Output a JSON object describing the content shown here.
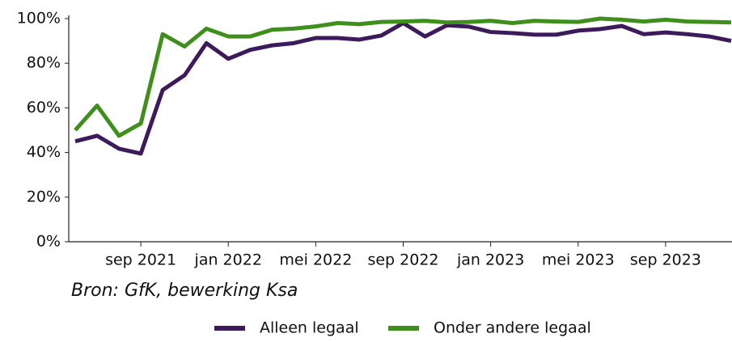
{
  "chart_data": {
    "type": "line",
    "categories": [
      null,
      null,
      null,
      "sep 2021",
      null,
      null,
      null,
      "jan 2022",
      null,
      null,
      null,
      "mei 2022",
      null,
      null,
      null,
      "sep 2022",
      null,
      null,
      null,
      "jan 2023",
      null,
      null,
      null,
      "mei 2023",
      null,
      null,
      null,
      "sep 2023",
      null,
      null,
      null
    ],
    "series": [
      {
        "name": "Alleen legaal",
        "color": "#3d1a5b",
        "values": [
          45,
          47.5,
          41.7,
          39.5,
          68,
          74.6,
          89,
          82,
          86,
          88,
          89,
          91.3,
          91.3,
          90.6,
          92.4,
          98,
          92,
          97,
          96.4,
          94,
          93.5,
          92.8,
          92.8,
          94.6,
          95.3,
          96.7,
          93,
          93.8,
          93,
          92,
          90
        ]
      },
      {
        "name": "Onder andere legaal",
        "color": "#3f8f1d",
        "values": [
          50,
          61,
          47.5,
          53,
          93,
          87.5,
          95.5,
          92,
          92,
          95,
          95.5,
          96.5,
          98,
          97.5,
          98.5,
          98.7,
          99,
          98.3,
          98.5,
          99,
          98,
          99,
          98.7,
          98.5,
          100,
          99.5,
          98.7,
          99.5,
          98.7,
          98.5,
          98.3
        ]
      }
    ],
    "ylim": [
      0,
      100
    ],
    "yticks": [
      {
        "value": 0,
        "label": "0%"
      },
      {
        "value": 20,
        "label": "20%"
      },
      {
        "value": 40,
        "label": "40%"
      },
      {
        "value": 60,
        "label": "60%"
      },
      {
        "value": 80,
        "label": "80%"
      },
      {
        "value": 100,
        "label": "100%"
      }
    ],
    "source": "Bron: GfK, bewerking Ksa",
    "legend": "bottom"
  }
}
